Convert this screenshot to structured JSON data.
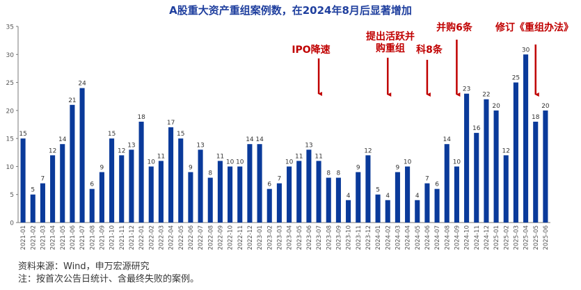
{
  "chart_data": {
    "type": "bar",
    "title": "A股重大资产重组案例数，在2024年8月后显著增加",
    "xlabel": "",
    "ylabel": "",
    "ylim": [
      0,
      35
    ],
    "yticks": [
      0,
      5,
      10,
      15,
      20,
      25,
      30,
      35
    ],
    "grid": false,
    "legend": "none",
    "bar_color": "#0a3a9a",
    "annotation_color": "#c00000",
    "categories": [
      "2021-01",
      "2021-02",
      "2021-03",
      "2021-04",
      "2021-05",
      "2021-06",
      "2021-07",
      "2021-08",
      "2021-09",
      "2021-10",
      "2021-11",
      "2021-12",
      "2022-01",
      "2022-02",
      "2022-03",
      "2022-04",
      "2022-05",
      "2022-06",
      "2022-07",
      "2022-08",
      "2022-09",
      "2022-10",
      "2022-11",
      "2022-12",
      "2023-01",
      "2023-02",
      "2023-03",
      "2023-04",
      "2023-05",
      "2023-06",
      "2023-07",
      "2023-08",
      "2023-09",
      "2023-10",
      "2023-11",
      "2023-12",
      "2024-01",
      "2024-02",
      "2024-03",
      "2024-04",
      "2024-05",
      "2024-06",
      "2024-07",
      "2024-08",
      "2024-09",
      "2024-10",
      "2024-11",
      "2024-12",
      "2025-01",
      "2025-02",
      "2025-03",
      "2025-04",
      "2025-05",
      "2025-06"
    ],
    "values": [
      15,
      5,
      7,
      12,
      14,
      21,
      24,
      6,
      9,
      15,
      12,
      13,
      18,
      10,
      11,
      17,
      15,
      9,
      13,
      8,
      11,
      10,
      10,
      14,
      14,
      6,
      7,
      10,
      11,
      13,
      11,
      8,
      8,
      4,
      9,
      12,
      5,
      4,
      9,
      10,
      4,
      7,
      6,
      14,
      10,
      23,
      16,
      22,
      20,
      12,
      25,
      30,
      18,
      20
    ],
    "annotations": [
      {
        "lines": [
          "IPO降速"
        ],
        "category": "2023-07"
      },
      {
        "lines": [
          "提出活跃并",
          "购重组"
        ],
        "category": "2024-02"
      },
      {
        "lines": [
          "科8条"
        ],
        "category": "2024-06"
      },
      {
        "lines": [
          "并购6条"
        ],
        "category": "2024-09"
      },
      {
        "lines": [
          "修订《重组办法》"
        ],
        "category": "2025-05"
      }
    ]
  },
  "source": "资料来源：Wind，申万宏源研究",
  "note": "注：按首次公告日统计、含最终失败的案例。"
}
